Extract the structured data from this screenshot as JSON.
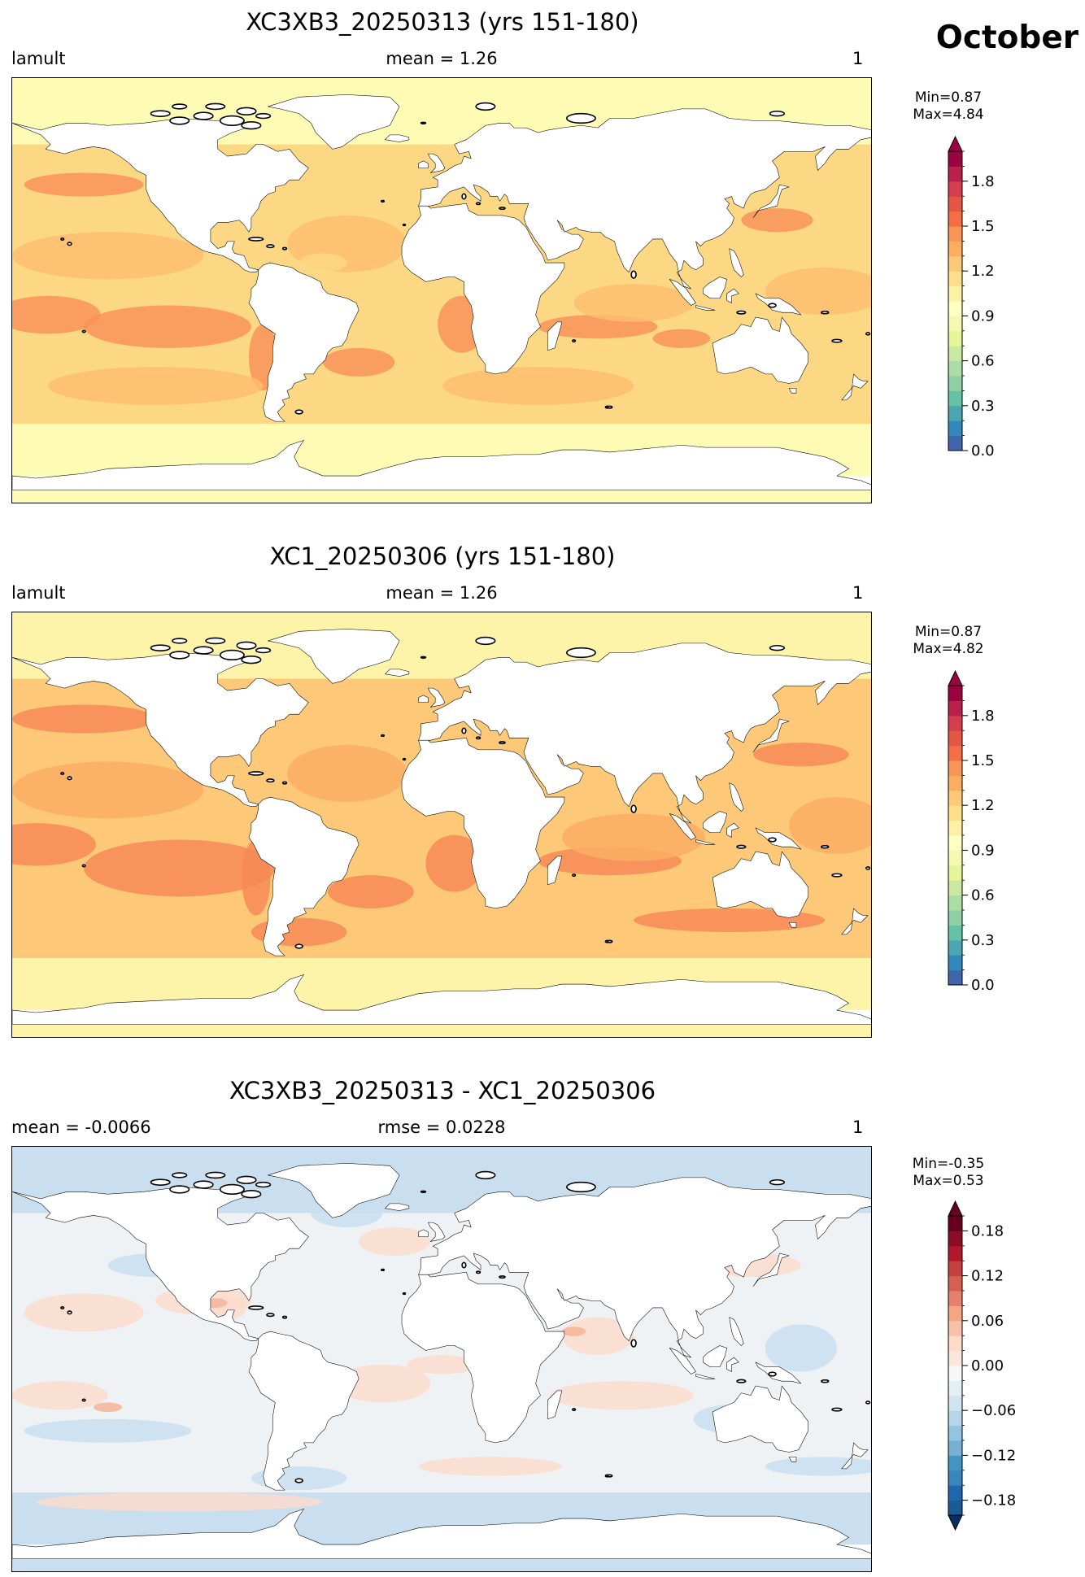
{
  "month_label": "October",
  "panels": [
    {
      "title": "XC3XB3_20250313 (yrs 151-180)",
      "left_label": "lamult",
      "center_label": "mean = 1.26",
      "right_label": "1",
      "min_text": "Min=0.87",
      "max_text": "Max=4.84",
      "colorbar": {
        "colormap": "Spectral_r",
        "range": [
          0.0,
          2.0
        ],
        "ticks": [
          "0.0",
          "0.3",
          "0.6",
          "0.9",
          "1.2",
          "1.5",
          "1.8"
        ],
        "tick_values": [
          0.0,
          0.3,
          0.6,
          0.9,
          1.2,
          1.5,
          1.8
        ],
        "levels": 20,
        "extend": "max"
      },
      "colors": {
        "polar": "#fefbb5",
        "ocean_base": "#fdd884",
        "ocean_warm": "#fdbe6f",
        "ocean_hot": "#f8935a"
      }
    },
    {
      "title": "XC1_20250306 (yrs 151-180)",
      "left_label": "lamult",
      "center_label": "mean = 1.26",
      "right_label": "1",
      "min_text": "Min=0.87",
      "max_text": "Max=4.82",
      "colorbar": {
        "colormap": "Spectral_r",
        "range": [
          0.0,
          2.0
        ],
        "ticks": [
          "0.0",
          "0.3",
          "0.6",
          "0.9",
          "1.2",
          "1.5",
          "1.8"
        ],
        "tick_values": [
          0.0,
          0.3,
          0.6,
          0.9,
          1.2,
          1.5,
          1.8
        ],
        "levels": 20,
        "extend": "max"
      },
      "colors": {
        "polar": "#fdf4aa",
        "ocean_base": "#fdc877",
        "ocean_warm": "#fbae63",
        "ocean_hot": "#f78a56"
      }
    },
    {
      "title": "XC3XB3_20250313 - XC1_20250306",
      "left_label": "mean = -0.0066",
      "center_label": "rmse = 0.0228",
      "right_label": "1",
      "min_text": "Min=-0.35",
      "max_text": "Max=0.53",
      "colorbar": {
        "colormap": "RdBu_r",
        "range": [
          -0.2,
          0.2
        ],
        "ticks": [
          "−0.18",
          "−0.12",
          "−0.06",
          "0.00",
          "0.06",
          "0.12",
          "0.18"
        ],
        "tick_values": [
          -0.18,
          -0.12,
          -0.06,
          0.0,
          0.06,
          0.12,
          0.18
        ],
        "levels": 20,
        "extend": "both"
      },
      "colors": {
        "polar": "#c9dff0",
        "ocean_base": "#eef2f5",
        "ocean_warm": "#fbdccd",
        "ocean_hot": "#f4b497"
      }
    }
  ]
}
